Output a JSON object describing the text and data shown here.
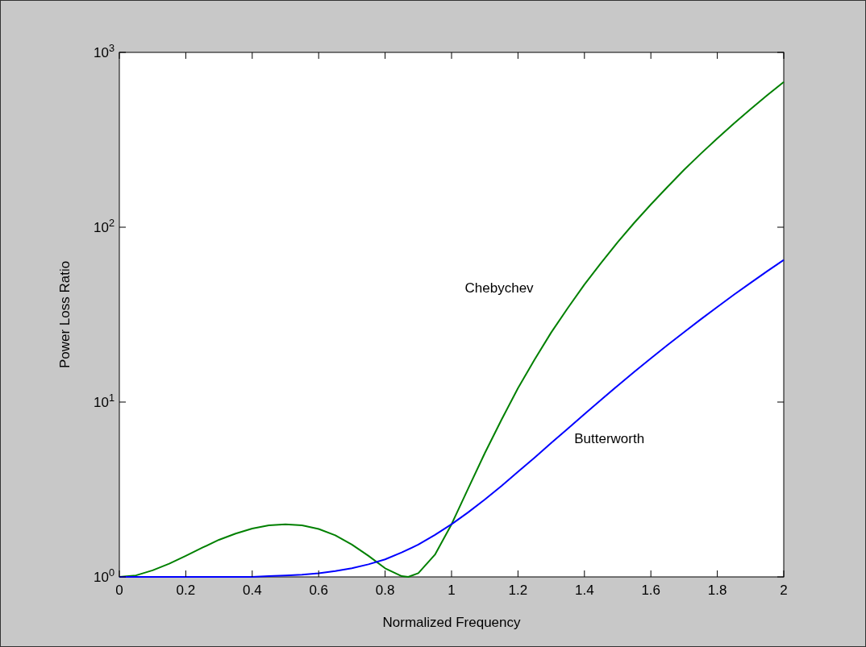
{
  "chart_data": {
    "type": "line",
    "xlabel": "Normalized Frequency",
    "ylabel": "Power Loss Ratio",
    "log": "y",
    "grid": false,
    "xlim": [
      0,
      2
    ],
    "xticks": [
      0,
      0.2,
      0.4,
      0.6,
      0.8,
      1,
      1.2,
      1.4,
      1.6,
      1.8,
      2
    ],
    "ylim": [
      1,
      1000
    ],
    "yticks": [
      {
        "value": 1,
        "label": "10$^{0}$"
      },
      {
        "value": 10,
        "label": "10$^{1}$"
      },
      {
        "value": 100,
        "label": "10$^{2}$"
      },
      {
        "value": 1000,
        "label": "10$^{3}$"
      }
    ],
    "x": [
      0,
      0.05,
      0.1,
      0.15,
      0.2,
      0.25,
      0.3,
      0.35,
      0.4,
      0.45,
      0.5,
      0.55,
      0.6,
      0.65,
      0.7,
      0.75,
      0.8,
      0.85,
      0.9,
      0.95,
      1,
      1.05,
      1.1,
      1.15,
      1.2,
      1.25,
      1.3,
      1.35,
      1.4,
      1.45,
      1.5,
      1.55,
      1.6,
      1.65,
      1.7,
      1.75,
      1.8,
      1.85,
      1.9,
      1.95,
      2
    ],
    "series": [
      {
        "name": "Chebychev",
        "color": "#008000",
        "x": [
          0,
          0.05,
          0.1,
          0.15,
          0.2,
          0.25,
          0.3,
          0.35,
          0.4,
          0.45,
          0.5,
          0.55,
          0.6,
          0.65,
          0.7,
          0.75,
          0.8,
          0.85,
          0.87,
          0.9,
          0.95,
          1,
          1.05,
          1.1,
          1.15,
          1.2,
          1.25,
          1.3,
          1.35,
          1.4,
          1.45,
          1.5,
          1.55,
          1.6,
          1.65,
          1.7,
          1.75,
          1.8,
          1.85,
          1.9,
          1.95,
          2
        ],
        "values": [
          1,
          1.02,
          1.09,
          1.19,
          1.32,
          1.47,
          1.63,
          1.77,
          1.89,
          1.97,
          2,
          1.97,
          1.88,
          1.73,
          1.53,
          1.32,
          1.12,
          1.01,
          1,
          1.05,
          1.34,
          2,
          3.2,
          5.1,
          7.9,
          12,
          17.5,
          25,
          34.5,
          47,
          62.5,
          82,
          106,
          135,
          170,
          213,
          263,
          322,
          392,
          473,
          568,
          677
        ]
      },
      {
        "name": "Butterworth",
        "color": "#0000ff",
        "values": [
          1,
          1,
          1,
          1,
          1,
          1,
          1,
          1,
          1,
          1.01,
          1.02,
          1.03,
          1.05,
          1.08,
          1.12,
          1.18,
          1.26,
          1.38,
          1.53,
          1.74,
          2,
          2.34,
          2.77,
          3.31,
          3.99,
          4.81,
          5.83,
          7.05,
          8.53,
          10.3,
          12.4,
          14.9,
          17.8,
          21.2,
          25.1,
          29.7,
          35,
          41.1,
          48,
          56,
          65
        ]
      }
    ],
    "line_style": "solid"
  }
}
